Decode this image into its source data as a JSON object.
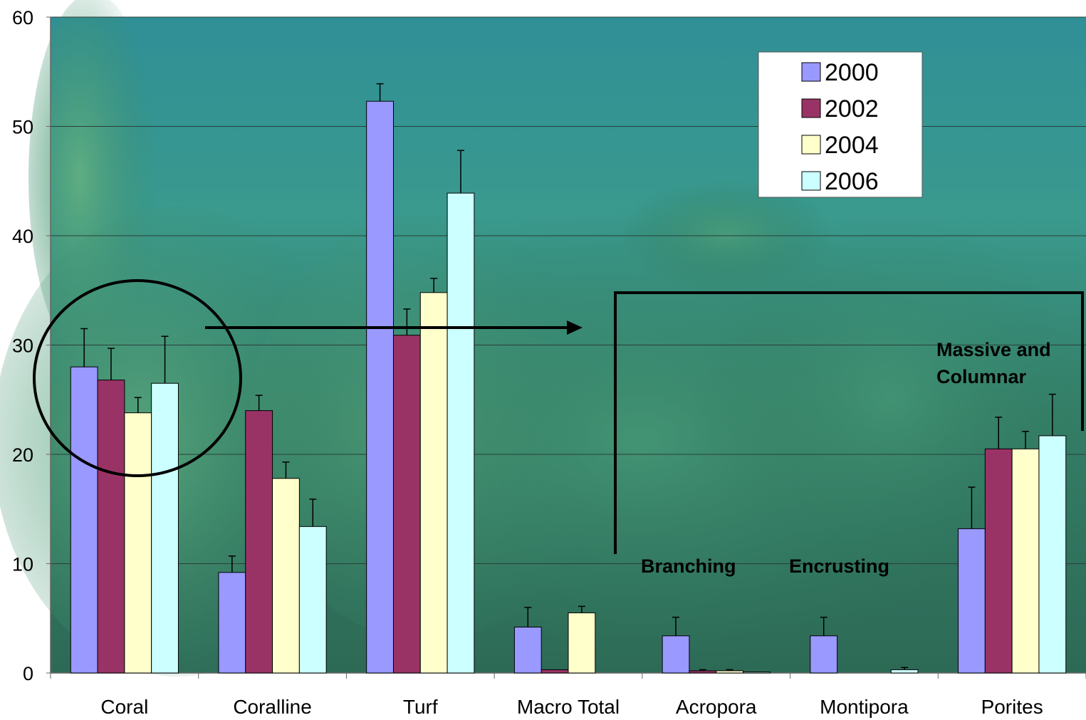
{
  "chart_data": {
    "type": "bar",
    "categories": [
      "Coral",
      "Coralline",
      "Turf",
      "Macro Total",
      "Acropora",
      "Montipora",
      "Porites"
    ],
    "series": [
      {
        "name": "2000",
        "color": "#9999ff",
        "values": [
          28.0,
          9.2,
          52.3,
          4.2,
          3.4,
          3.4,
          13.2
        ],
        "errors": [
          3.5,
          1.5,
          1.6,
          1.8,
          1.7,
          1.7,
          3.8
        ]
      },
      {
        "name": "2002",
        "color": "#993366",
        "values": [
          26.8,
          24.0,
          30.9,
          0.3,
          0.2,
          0.0,
          20.5
        ],
        "errors": [
          2.9,
          1.4,
          2.4,
          0.0,
          0.1,
          0.0,
          2.9
        ]
      },
      {
        "name": "2004",
        "color": "#ffffcc",
        "values": [
          23.8,
          17.8,
          34.8,
          5.5,
          0.2,
          0.0,
          20.5
        ],
        "errors": [
          1.4,
          1.5,
          1.3,
          0.6,
          0.1,
          0.0,
          1.6
        ]
      },
      {
        "name": "2006",
        "color": "#ccffff",
        "values": [
          26.5,
          13.4,
          43.9,
          0.0,
          0.1,
          0.3,
          21.7
        ],
        "errors": [
          4.3,
          2.5,
          3.9,
          0.0,
          0.0,
          0.2,
          3.8
        ]
      }
    ],
    "ylim": [
      0,
      60
    ],
    "yticks": [
      0,
      10,
      20,
      30,
      40,
      50,
      60
    ],
    "grid": true,
    "legend_position": "top-right",
    "annotations": [
      "Branching",
      "Encrusting",
      "Massive and",
      "Columnar"
    ],
    "background": "underwater coral reef photograph"
  }
}
